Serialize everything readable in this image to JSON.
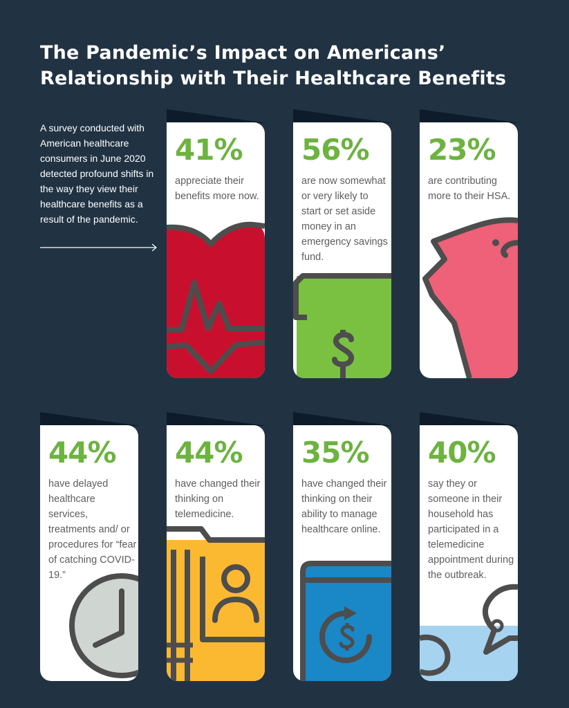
{
  "title": {
    "line1": "The Pandemic’s Impact on Americans’",
    "line2": "Relationship with Their Healthcare Benefits"
  },
  "intro": "A survey conducted with American healthcare consumers in June 2020 detected profound shifts in the way they view their healthcare benefits as a result of the pandemic.",
  "colors": {
    "background": "#213343",
    "accent_green": "#6cb33f",
    "heart_red": "#c8102e",
    "wallet_green": "#7ac142",
    "piggy_pink": "#ef6079",
    "gray_icon": "#cfd5d1",
    "folder_yellow": "#fbb932",
    "tablet_blue": "#1a87c6",
    "chat_lightblue": "#a6d3ef",
    "line_gray": "#4d4d4d"
  },
  "cards": [
    {
      "pct": "41%",
      "text": "appreciate their benefits more now.",
      "icon": "heart-icon"
    },
    {
      "pct": "56%",
      "text": "are now somewhat or very likely to start or set aside money in an emergency savings fund.",
      "icon": "wallet-icon"
    },
    {
      "pct": "23%",
      "text": "are contributing more to their HSA.",
      "icon": "piggy-bank-icon"
    },
    {
      "pct": "44%",
      "text": "have delayed healthcare services, treatments and/ or procedures for “fear of catching COVID-19.”",
      "icon": "clock-icon"
    },
    {
      "pct": "44%",
      "text": "have changed their thinking on telemedicine.",
      "icon": "medical-folder-icon"
    },
    {
      "pct": "35%",
      "text": "have changed their thinking on their ability to manage healthcare online.",
      "icon": "tablet-dollar-icon"
    },
    {
      "pct": "40%",
      "text": "say they or someone in their household has participated in a telemedicine appointment during the outbreak.",
      "icon": "chat-bubble-icon"
    }
  ]
}
